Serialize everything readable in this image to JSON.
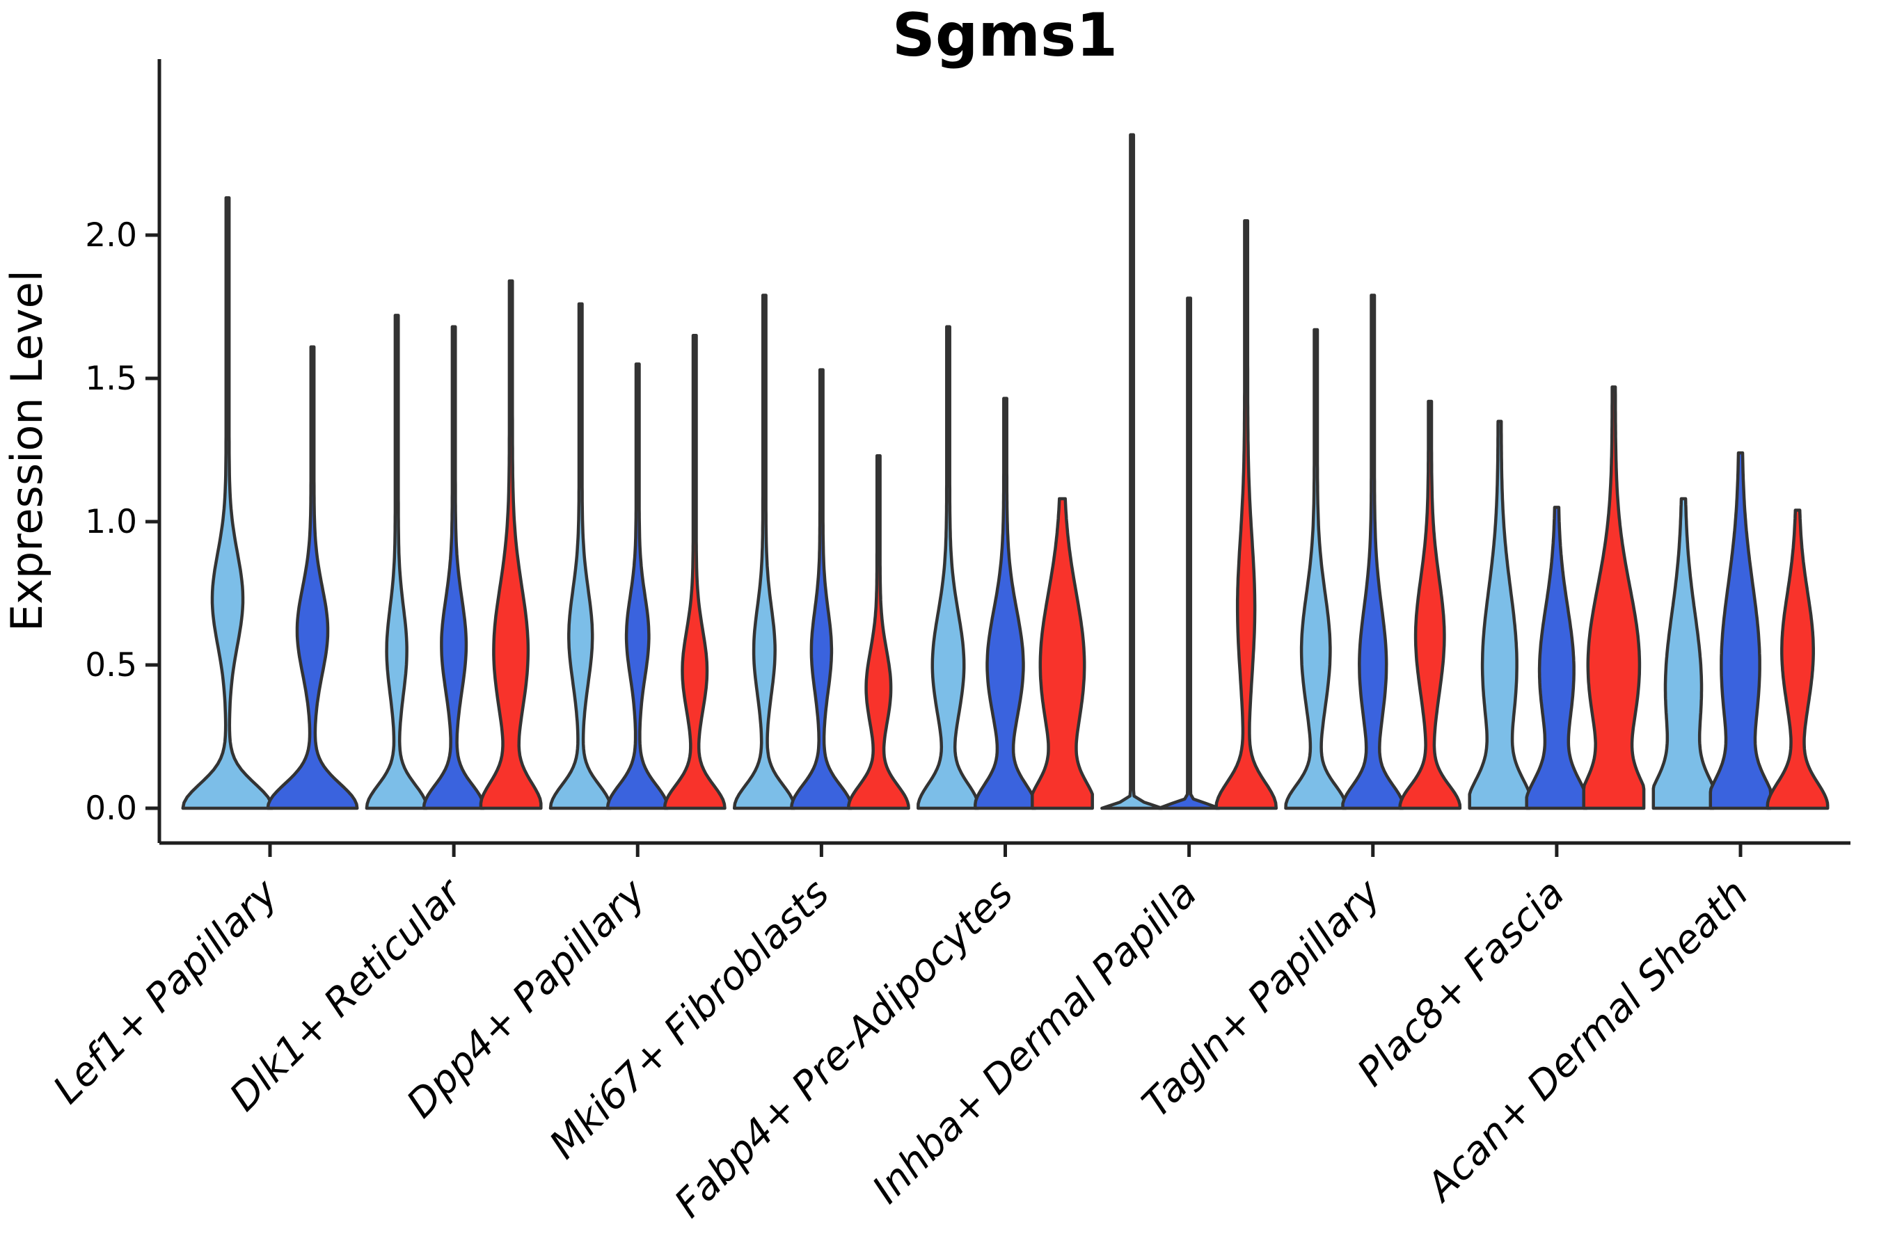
{
  "title": "Sgms1",
  "axis": {
    "ylabel": "Expression Level",
    "ytick_labels": [
      "0.0",
      "0.5",
      "1.0",
      "1.5",
      "2.0"
    ],
    "ytick_values": [
      0.0,
      0.5,
      1.0,
      1.5,
      2.0
    ]
  },
  "palette": {
    "light_blue": "#7CBEE8",
    "royal_blue": "#3A63DE",
    "red": "#F8332B",
    "outline": "#333333",
    "spine": "#1F1F1F",
    "text": "#000000",
    "background": "#FFFFFF"
  },
  "chart_data": {
    "type": "violin",
    "title": "Sgms1",
    "xlabel": "",
    "ylabel": "Expression Level",
    "ylim": [
      -0.12,
      2.6
    ],
    "yticks": [
      0.0,
      0.5,
      1.0,
      1.5,
      2.0
    ],
    "grid": false,
    "legend": "none",
    "categories": [
      "Lef1+ Papillary",
      "Dlk1+ Reticular",
      "Dpp4+ Papillary",
      "Mki67+ Fibroblasts",
      "Fabp4+ Pre-Adipocytes",
      "Inhba+ Dermal Papilla",
      "Tagln+ Papillary",
      "Plac8+ Fascia",
      "Acan+ Dermal Sheath"
    ],
    "series_order": [
      "light_blue",
      "royal_blue",
      "red"
    ],
    "violins": [
      {
        "category": "Lef1+ Papillary",
        "series": "light_blue",
        "max": 2.13,
        "base_sigma": 0.085,
        "bulge_center": 0.73,
        "bulge_sigma": 0.16,
        "bulge_width": 0.32
      },
      {
        "category": "Lef1+ Papillary",
        "series": "royal_blue",
        "max": 1.61,
        "base_sigma": 0.085,
        "bulge_center": 0.62,
        "bulge_sigma": 0.15,
        "bulge_width": 0.32
      },
      {
        "category": "Dlk1+ Reticular",
        "series": "light_blue",
        "max": 1.72,
        "base_sigma": 0.08,
        "bulge_center": 0.55,
        "bulge_sigma": 0.15,
        "bulge_width": 0.3
      },
      {
        "category": "Dlk1+ Reticular",
        "series": "royal_blue",
        "max": 1.68,
        "base_sigma": 0.08,
        "bulge_center": 0.57,
        "bulge_sigma": 0.16,
        "bulge_width": 0.38
      },
      {
        "category": "Dlk1+ Reticular",
        "series": "red",
        "max": 1.84,
        "base_sigma": 0.09,
        "bulge_center": 0.55,
        "bulge_sigma": 0.22,
        "bulge_width": 0.55
      },
      {
        "category": "Dpp4+ Papillary",
        "series": "light_blue",
        "max": 1.76,
        "base_sigma": 0.08,
        "bulge_center": 0.6,
        "bulge_sigma": 0.16,
        "bulge_width": 0.36
      },
      {
        "category": "Dpp4+ Papillary",
        "series": "royal_blue",
        "max": 1.55,
        "base_sigma": 0.08,
        "bulge_center": 0.6,
        "bulge_sigma": 0.14,
        "bulge_width": 0.34
      },
      {
        "category": "Dpp4+ Papillary",
        "series": "red",
        "max": 1.65,
        "base_sigma": 0.08,
        "bulge_center": 0.48,
        "bulge_sigma": 0.14,
        "bulge_width": 0.38
      },
      {
        "category": "Mki67+ Fibroblasts",
        "series": "light_blue",
        "max": 1.79,
        "base_sigma": 0.08,
        "bulge_center": 0.55,
        "bulge_sigma": 0.15,
        "bulge_width": 0.32
      },
      {
        "category": "Mki67+ Fibroblasts",
        "series": "royal_blue",
        "max": 1.53,
        "base_sigma": 0.08,
        "bulge_center": 0.55,
        "bulge_sigma": 0.14,
        "bulge_width": 0.3
      },
      {
        "category": "Mki67+ Fibroblasts",
        "series": "red",
        "max": 1.23,
        "base_sigma": 0.08,
        "bulge_center": 0.42,
        "bulge_sigma": 0.13,
        "bulge_width": 0.38
      },
      {
        "category": "Fabp4+ Pre-Adipocytes",
        "series": "light_blue",
        "max": 1.68,
        "base_sigma": 0.085,
        "bulge_center": 0.5,
        "bulge_sigma": 0.18,
        "bulge_width": 0.5
      },
      {
        "category": "Fabp4+ Pre-Adipocytes",
        "series": "royal_blue",
        "max": 1.43,
        "base_sigma": 0.085,
        "bulge_center": 0.5,
        "bulge_sigma": 0.19,
        "bulge_width": 0.58
      },
      {
        "category": "Fabp4+ Pre-Adipocytes",
        "series": "red",
        "max": 1.08,
        "base_sigma": 0.09,
        "bulge_center": 0.5,
        "bulge_sigma": 0.25,
        "bulge_width": 0.72
      },
      {
        "category": "Inhba+ Dermal Papilla",
        "series": "light_blue",
        "max": 2.35,
        "base_sigma": 0.015,
        "bulge_center": 0.0,
        "bulge_sigma": 0.1,
        "bulge_width": 0.0
      },
      {
        "category": "Inhba+ Dermal Papilla",
        "series": "royal_blue",
        "max": 1.78,
        "base_sigma": 0.015,
        "bulge_center": 0.0,
        "bulge_sigma": 0.1,
        "bulge_width": 0.0
      },
      {
        "category": "Inhba+ Dermal Papilla",
        "series": "red",
        "max": 2.05,
        "base_sigma": 0.09,
        "bulge_center": 0.7,
        "bulge_sigma": 0.24,
        "bulge_width": 0.25
      },
      {
        "category": "Tagln+ Papillary",
        "series": "light_blue",
        "max": 1.67,
        "base_sigma": 0.08,
        "bulge_center": 0.55,
        "bulge_sigma": 0.2,
        "bulge_width": 0.45
      },
      {
        "category": "Tagln+ Papillary",
        "series": "royal_blue",
        "max": 1.79,
        "base_sigma": 0.08,
        "bulge_center": 0.5,
        "bulge_sigma": 0.2,
        "bulge_width": 0.42
      },
      {
        "category": "Tagln+ Papillary",
        "series": "red",
        "max": 1.42,
        "base_sigma": 0.08,
        "bulge_center": 0.6,
        "bulge_sigma": 0.2,
        "bulge_width": 0.45
      },
      {
        "category": "Plac8+ Fascia",
        "series": "light_blue",
        "max": 1.35,
        "base_sigma": 0.1,
        "bulge_center": 0.5,
        "bulge_sigma": 0.26,
        "bulge_width": 0.55
      },
      {
        "category": "Plac8+ Fascia",
        "series": "royal_blue",
        "max": 1.05,
        "base_sigma": 0.1,
        "bulge_center": 0.48,
        "bulge_sigma": 0.22,
        "bulge_width": 0.55
      },
      {
        "category": "Plac8+ Fascia",
        "series": "red",
        "max": 1.47,
        "base_sigma": 0.1,
        "bulge_center": 0.5,
        "bulge_sigma": 0.27,
        "bulge_width": 0.85
      },
      {
        "category": "Acan+ Dermal Sheath",
        "series": "light_blue",
        "max": 1.08,
        "base_sigma": 0.1,
        "bulge_center": 0.42,
        "bulge_sigma": 0.26,
        "bulge_width": 0.58
      },
      {
        "category": "Acan+ Dermal Sheath",
        "series": "royal_blue",
        "max": 1.24,
        "base_sigma": 0.1,
        "bulge_center": 0.5,
        "bulge_sigma": 0.28,
        "bulge_width": 0.62
      },
      {
        "category": "Acan+ Dermal Sheath",
        "series": "red",
        "max": 1.04,
        "base_sigma": 0.09,
        "bulge_center": 0.55,
        "bulge_sigma": 0.2,
        "bulge_width": 0.5
      }
    ]
  }
}
